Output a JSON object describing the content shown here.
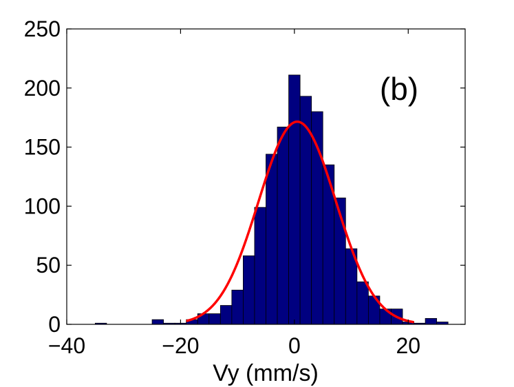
{
  "chart_data": {
    "type": "bar",
    "subtype": "histogram",
    "title": "",
    "xlabel": "Vy (mm/s)",
    "ylabel": "",
    "annotation": "(b)",
    "xlim": [
      -40,
      30
    ],
    "ylim": [
      0,
      250
    ],
    "xticks": [
      -40,
      -20,
      0,
      20
    ],
    "xtick_labels": [
      "−40",
      "−20",
      "0",
      "20"
    ],
    "yticks": [
      0,
      50,
      100,
      150,
      200,
      250
    ],
    "ytick_labels": [
      "0",
      "50",
      "100",
      "150",
      "200",
      "250"
    ],
    "grid": false,
    "bin_edges": [
      -35,
      -33,
      -31,
      -29,
      -27,
      -25,
      -23,
      -21,
      -19,
      -17,
      -15,
      -13,
      -11,
      -9,
      -7,
      -5,
      -3,
      -1,
      1,
      3,
      5,
      7,
      9,
      11,
      13,
      15,
      17,
      19,
      21,
      23,
      25,
      27,
      29
    ],
    "counts": [
      1,
      0,
      0,
      0,
      0,
      4,
      1,
      1,
      4,
      9,
      9,
      16,
      29,
      58,
      99,
      144,
      167,
      211,
      193,
      180,
      135,
      107,
      64,
      36,
      24,
      13,
      13,
      2,
      1,
      5,
      2,
      0
    ],
    "bar_color": "#000080",
    "fit": {
      "type": "gaussian",
      "mean": 0.5,
      "sigma": 6.8,
      "amplitude": 171.5,
      "x_range": [
        -19,
        21
      ],
      "color": "#ff0000"
    }
  }
}
